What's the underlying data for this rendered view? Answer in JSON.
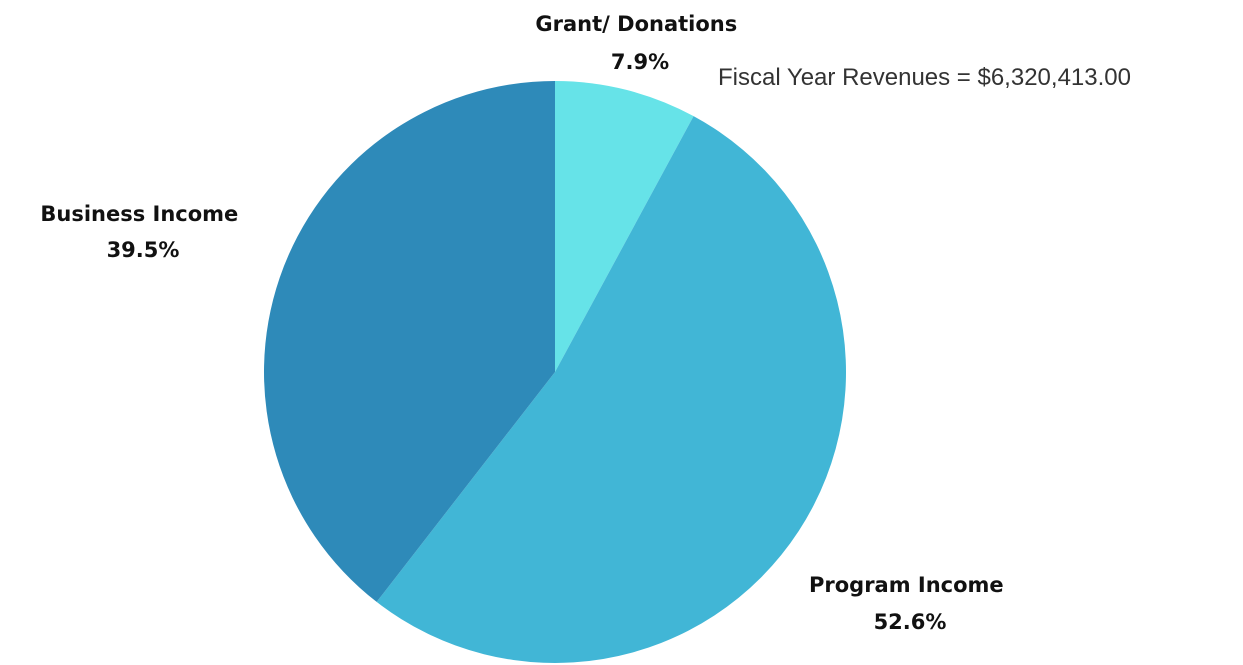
{
  "chart_data": {
    "type": "pie",
    "annotation": "Fiscal Year Revenues = $6,320,413.00",
    "slices": [
      {
        "name": "Grant/ Donations",
        "value": 7.9,
        "value_label": "7.9%",
        "color": "#66E3E8"
      },
      {
        "name": "Program Income",
        "value": 52.6,
        "value_label": "52.6%",
        "color": "#41B6D6"
      },
      {
        "name": "Business Income",
        "value": 39.5,
        "value_label": "39.5%",
        "color": "#2E8AB9"
      }
    ],
    "start_angle": "12 o'clock",
    "direction": "clockwise"
  }
}
